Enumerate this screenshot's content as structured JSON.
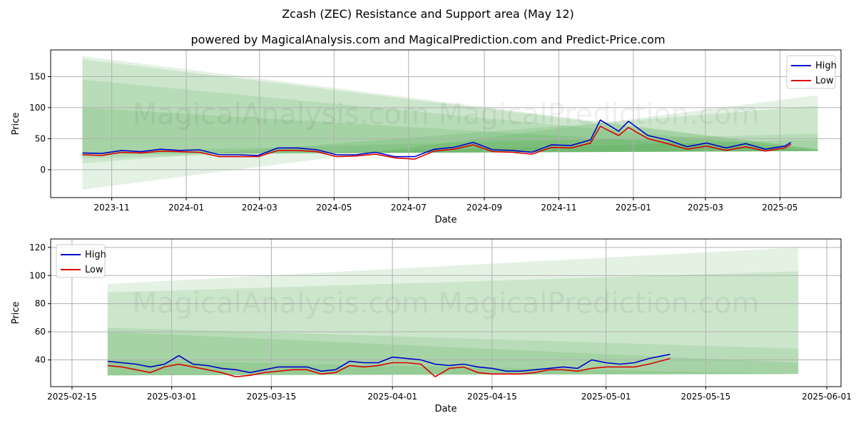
{
  "title": "Zcash (ZEC) Resistance and Support area (May 12)",
  "subtitle": "powered by MagicalAnalysis.com and MagicalPrediction.com and Predict-Price.com",
  "watermark": "MagicalAnalysis.com    MagicalPrediction.com",
  "colors": {
    "high": "#0000cc",
    "low": "#dd0000",
    "band": "#2e9a2e",
    "grid": "#b0b0b0"
  },
  "chart_data": [
    {
      "type": "line",
      "xlabel": "Date",
      "ylabel": "Price",
      "xlim": [
        "2023-09-12",
        "2025-06-20"
      ],
      "ylim": [
        -45,
        193
      ],
      "xticks": [
        "2023-11",
        "2024-01",
        "2024-03",
        "2024-05",
        "2024-07",
        "2024-09",
        "2024-11",
        "2025-01",
        "2025-03",
        "2025-05"
      ],
      "xtick_dates": [
        "2023-11-01",
        "2024-01-01",
        "2024-03-01",
        "2024-05-01",
        "2024-07-01",
        "2024-09-01",
        "2024-11-01",
        "2025-01-01",
        "2025-03-01",
        "2025-05-01"
      ],
      "yticks": [
        0,
        50,
        100,
        150
      ],
      "grid": true,
      "legend": "top-right",
      "bands": {
        "x": [
          "2023-10-08",
          "2025-06-01"
        ],
        "bounds": [
          [
            -32,
            120
          ],
          [
            10,
            103
          ],
          [
            28,
            58
          ],
          [
            18,
            48
          ],
          [
            100,
            30
          ],
          [
            145,
            32
          ],
          [
            178,
            33
          ],
          [
            183,
            33
          ]
        ]
      },
      "series": [
        {
          "name": "High",
          "x": [
            "2023-10-08",
            "2023-10-24",
            "2023-11-09",
            "2023-11-25",
            "2023-12-11",
            "2023-12-27",
            "2024-01-12",
            "2024-01-28",
            "2024-02-13",
            "2024-02-29",
            "2024-03-16",
            "2024-04-01",
            "2024-04-17",
            "2024-05-03",
            "2024-05-19",
            "2024-06-04",
            "2024-06-20",
            "2024-07-06",
            "2024-07-22",
            "2024-08-07",
            "2024-08-23",
            "2024-09-08",
            "2024-09-24",
            "2024-10-10",
            "2024-10-26",
            "2024-11-11",
            "2024-11-27",
            "2024-12-05",
            "2024-12-20",
            "2024-12-28",
            "2025-01-13",
            "2025-01-29",
            "2025-02-14",
            "2025-03-02",
            "2025-03-18",
            "2025-04-03",
            "2025-04-19",
            "2025-05-05",
            "2025-05-10"
          ],
          "values": [
            27,
            26,
            31,
            29,
            33,
            31,
            32,
            24,
            24,
            23,
            35,
            35,
            32,
            24,
            24,
            28,
            21,
            21,
            33,
            36,
            44,
            32,
            31,
            28,
            40,
            39,
            48,
            80,
            62,
            78,
            55,
            48,
            37,
            43,
            35,
            42,
            33,
            38,
            44
          ]
        },
        {
          "name": "Low",
          "x": [
            "2023-10-08",
            "2023-10-24",
            "2023-11-09",
            "2023-11-25",
            "2023-12-11",
            "2023-12-27",
            "2024-01-12",
            "2024-01-28",
            "2024-02-13",
            "2024-02-29",
            "2024-03-16",
            "2024-04-01",
            "2024-04-17",
            "2024-05-03",
            "2024-05-19",
            "2024-06-04",
            "2024-06-20",
            "2024-07-06",
            "2024-07-22",
            "2024-08-07",
            "2024-08-23",
            "2024-09-08",
            "2024-09-24",
            "2024-10-10",
            "2024-10-26",
            "2024-11-11",
            "2024-11-27",
            "2024-12-05",
            "2024-12-20",
            "2024-12-28",
            "2025-01-13",
            "2025-01-29",
            "2025-02-14",
            "2025-03-02",
            "2025-03-18",
            "2025-04-03",
            "2025-04-19",
            "2025-05-05",
            "2025-05-10"
          ],
          "values": [
            24,
            23,
            28,
            27,
            30,
            29,
            28,
            21,
            21,
            21,
            31,
            31,
            29,
            21,
            22,
            25,
            19,
            17,
            30,
            33,
            40,
            29,
            28,
            25,
            36,
            35,
            43,
            70,
            55,
            68,
            50,
            42,
            33,
            38,
            31,
            37,
            30,
            35,
            41
          ]
        }
      ]
    },
    {
      "type": "line",
      "xlabel": "Date",
      "ylabel": "Price",
      "xlim": [
        "2025-02-12",
        "2025-06-03"
      ],
      "ylim": [
        21,
        126
      ],
      "xticks": [
        "2025-02-15",
        "2025-03-01",
        "2025-03-15",
        "2025-04-01",
        "2025-04-15",
        "2025-05-01",
        "2025-05-15",
        "2025-06-01"
      ],
      "yticks": [
        40,
        60,
        80,
        100,
        120
      ],
      "grid": true,
      "legend": "top-left",
      "bands": {
        "x": [
          "2025-02-20",
          "2025-05-28"
        ],
        "bounds": [
          [
            94,
            120
          ],
          [
            88,
            103
          ],
          [
            63,
            48
          ],
          [
            60,
            38
          ],
          [
            40,
            30
          ],
          [
            29,
            30
          ]
        ]
      },
      "series": [
        {
          "name": "High",
          "x": [
            "2025-02-20",
            "2025-02-22",
            "2025-02-24",
            "2025-02-26",
            "2025-02-28",
            "2025-03-02",
            "2025-03-04",
            "2025-03-06",
            "2025-03-08",
            "2025-03-10",
            "2025-03-12",
            "2025-03-14",
            "2025-03-16",
            "2025-03-18",
            "2025-03-20",
            "2025-03-22",
            "2025-03-24",
            "2025-03-26",
            "2025-03-28",
            "2025-03-30",
            "2025-04-01",
            "2025-04-03",
            "2025-04-05",
            "2025-04-07",
            "2025-04-09",
            "2025-04-11",
            "2025-04-13",
            "2025-04-15",
            "2025-04-17",
            "2025-04-19",
            "2025-04-21",
            "2025-04-23",
            "2025-04-25",
            "2025-04-27",
            "2025-04-29",
            "2025-05-01",
            "2025-05-03",
            "2025-05-05",
            "2025-05-07",
            "2025-05-10"
          ],
          "values": [
            39,
            38,
            37,
            35,
            37,
            43,
            37,
            36,
            34,
            33,
            31,
            33,
            35,
            35,
            35,
            32,
            33,
            39,
            38,
            38,
            42,
            41,
            40,
            37,
            36,
            37,
            35,
            34,
            32,
            32,
            33,
            34,
            35,
            34,
            40,
            38,
            37,
            38,
            41,
            44
          ]
        },
        {
          "name": "Low",
          "x": [
            "2025-02-20",
            "2025-02-22",
            "2025-02-24",
            "2025-02-26",
            "2025-02-28",
            "2025-03-02",
            "2025-03-04",
            "2025-03-06",
            "2025-03-08",
            "2025-03-10",
            "2025-03-12",
            "2025-03-14",
            "2025-03-16",
            "2025-03-18",
            "2025-03-20",
            "2025-03-22",
            "2025-03-24",
            "2025-03-26",
            "2025-03-28",
            "2025-03-30",
            "2025-04-01",
            "2025-04-03",
            "2025-04-05",
            "2025-04-07",
            "2025-04-09",
            "2025-04-11",
            "2025-04-13",
            "2025-04-15",
            "2025-04-17",
            "2025-04-19",
            "2025-04-21",
            "2025-04-23",
            "2025-04-25",
            "2025-04-27",
            "2025-04-29",
            "2025-05-01",
            "2025-05-03",
            "2025-05-05",
            "2025-05-07",
            "2025-05-10"
          ],
          "values": [
            36,
            35,
            33,
            31,
            35,
            37,
            35,
            33,
            31,
            28,
            29,
            31,
            32,
            33,
            33,
            30,
            31,
            36,
            35,
            36,
            38,
            38,
            37,
            28,
            34,
            35,
            31,
            30,
            30,
            30,
            31,
            33,
            33,
            32,
            34,
            35,
            35,
            35,
            37,
            41
          ]
        }
      ]
    }
  ]
}
